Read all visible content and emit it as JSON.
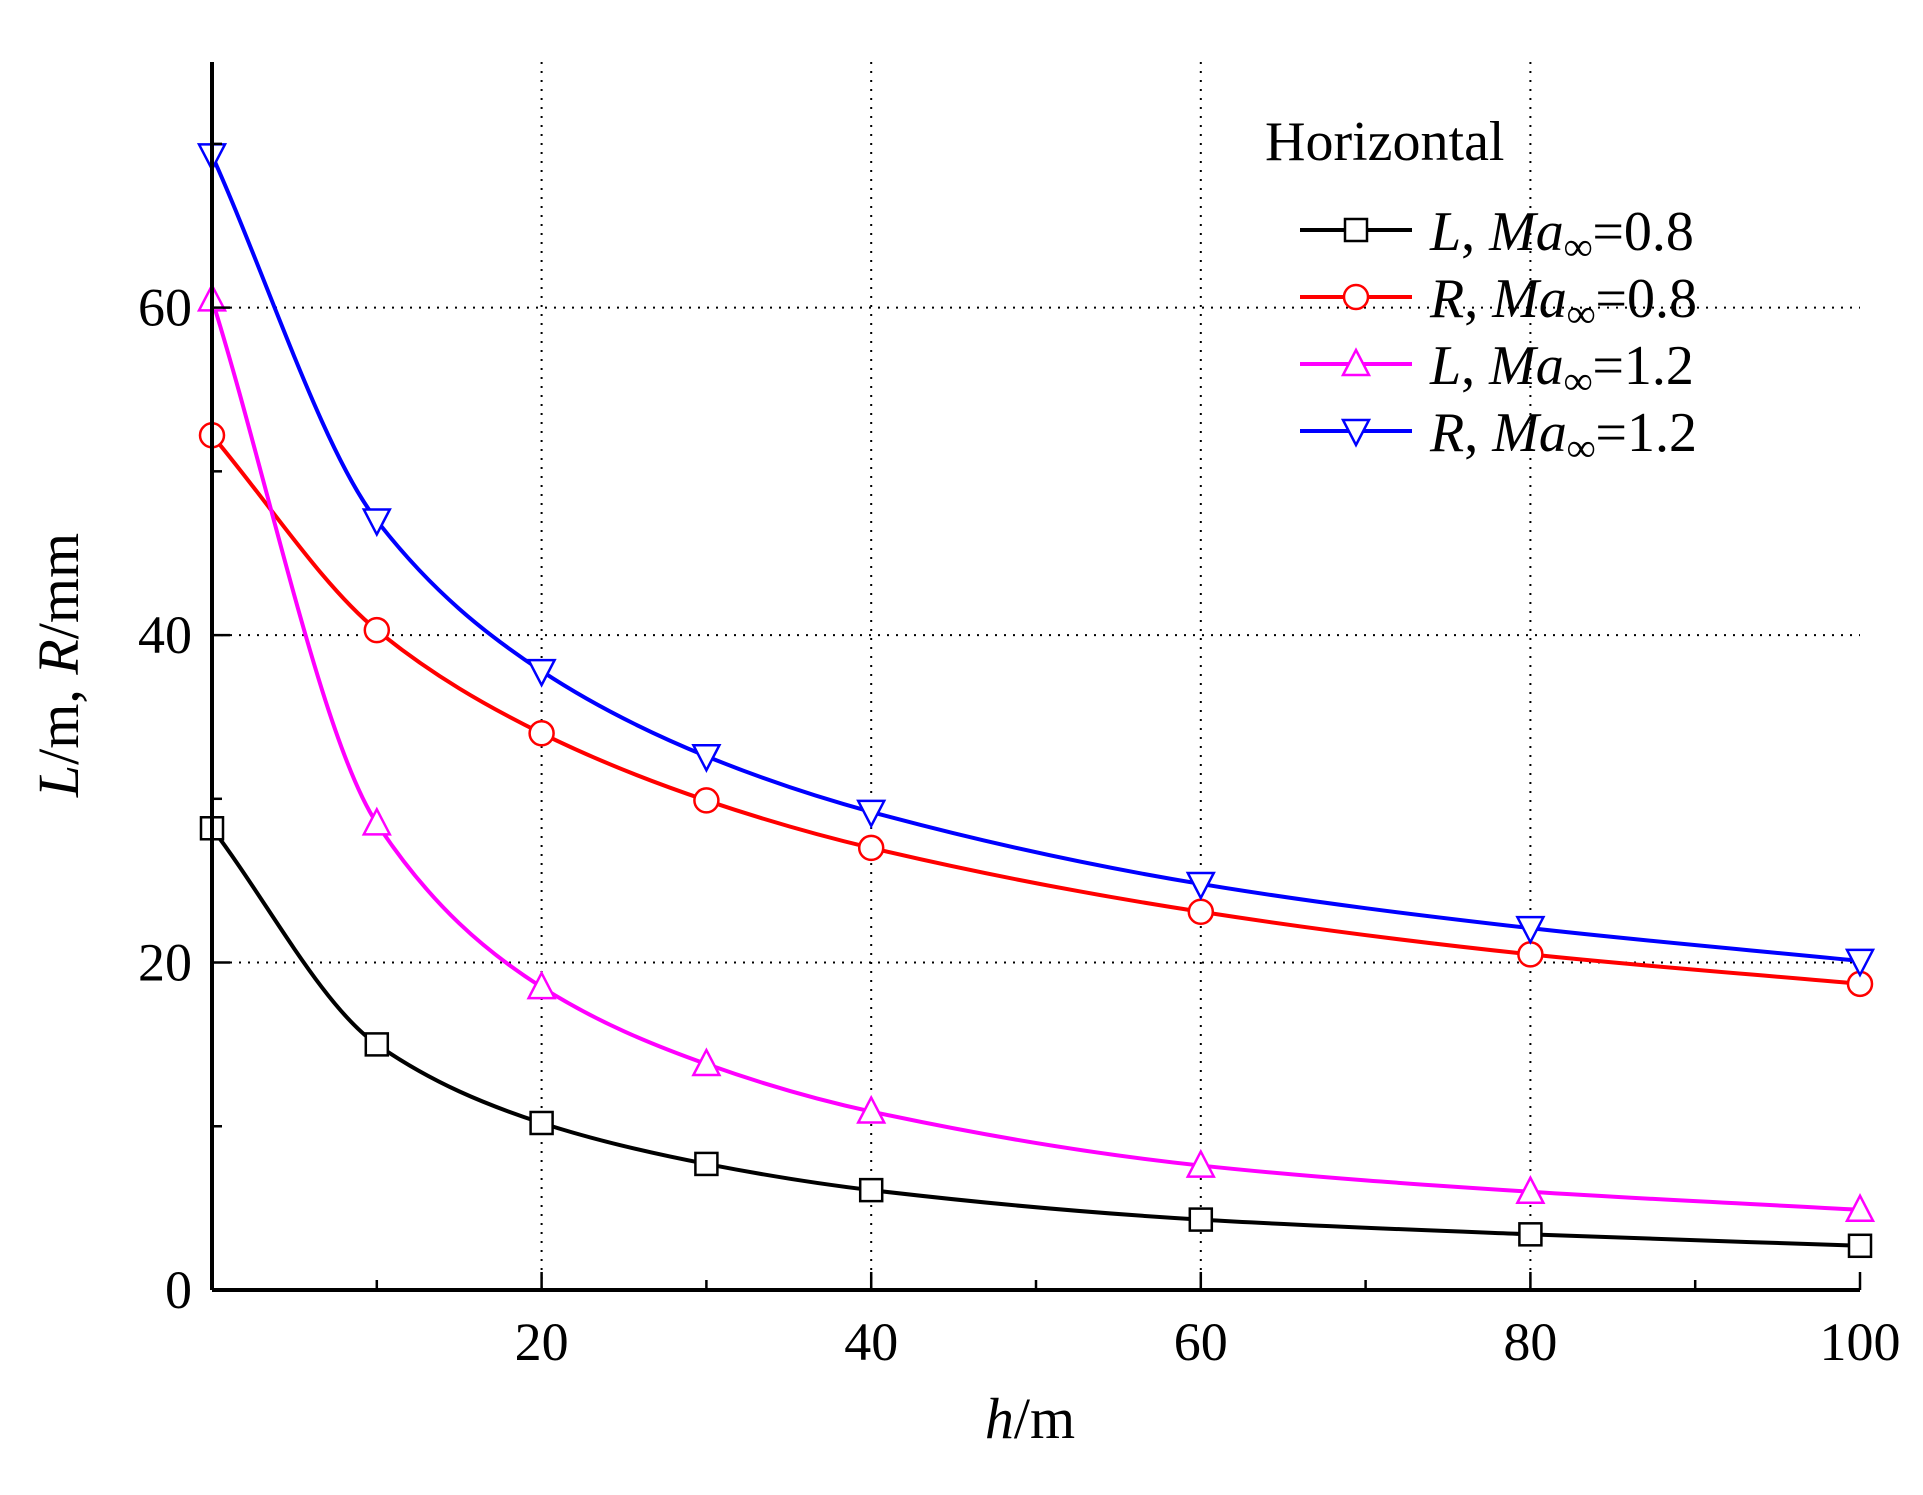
{
  "chart_data": {
    "type": "line",
    "xlabel": {
      "var": "h",
      "unit": "/m"
    },
    "ylabel": {
      "var1": "L",
      "sep1": "/m, ",
      "var2": "R",
      "unit": "/mm"
    },
    "xlim": [
      0,
      100
    ],
    "ylim": [
      0,
      75
    ],
    "xticks": [
      20,
      40,
      60,
      80,
      100
    ],
    "xtick_labels": [
      "20",
      "40",
      "60",
      "80",
      "100"
    ],
    "yticks": [
      0,
      20,
      40,
      60
    ],
    "ytick_labels": [
      "0",
      "20",
      "40",
      "60"
    ],
    "grid": true,
    "legend_title": "Horizontal",
    "legend_position": "top-right",
    "series": [
      {
        "name": "L, Ma∞=0.8",
        "label_var": "L",
        "label_sep": ", ",
        "label_var2": "Ma",
        "label_sub": "∞",
        "label_val": "=0.8",
        "color": "#000000",
        "marker": "square",
        "x": [
          0,
          10,
          20,
          30,
          40,
          60,
          80,
          100
        ],
        "y": [
          28.2,
          15.0,
          10.2,
          7.7,
          6.1,
          4.3,
          3.4,
          2.7
        ]
      },
      {
        "name": "R, Ma∞=0.8",
        "label_var": "R",
        "label_sep": ", ",
        "label_var2": "Ma",
        "label_sub": "∞",
        "label_val": "=0.8",
        "color": "#ff0000",
        "marker": "circle",
        "x": [
          0,
          10,
          20,
          30,
          40,
          60,
          80,
          100
        ],
        "y": [
          52.2,
          40.3,
          34.0,
          29.9,
          27.0,
          23.1,
          20.5,
          18.7
        ]
      },
      {
        "name": "L, Ma∞=1.2",
        "label_var": "L",
        "label_sep": ", ",
        "label_var2": "Ma",
        "label_sub": "∞",
        "label_val": "=1.2",
        "color": "#ff00ff",
        "marker": "triangle-up",
        "x": [
          0,
          10,
          20,
          30,
          40,
          60,
          80,
          100
        ],
        "y": [
          60.5,
          28.5,
          18.5,
          13.8,
          10.9,
          7.6,
          6.0,
          4.9
        ]
      },
      {
        "name": "R, Ma∞=1.2",
        "label_var": "R",
        "label_sep": ", ",
        "label_var2": "Ma",
        "label_sub": "∞",
        "label_val": "=1.2",
        "color": "#0000ff",
        "marker": "triangle-down",
        "x": [
          0,
          10,
          20,
          30,
          40,
          60,
          80,
          100
        ],
        "y": [
          69.3,
          47.0,
          37.8,
          32.6,
          29.2,
          24.8,
          22.1,
          20.1
        ]
      }
    ]
  }
}
